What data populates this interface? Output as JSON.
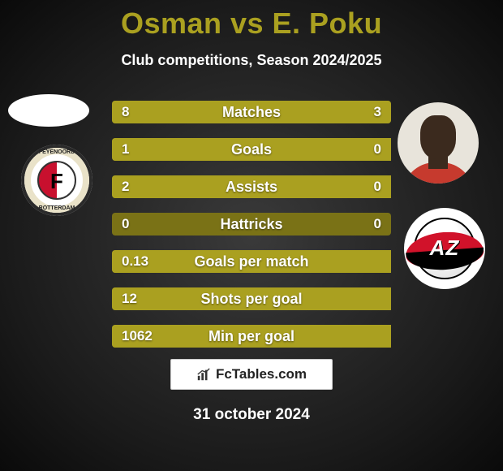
{
  "title": "Osman vs E. Poku",
  "subtitle": "Club competitions, Season 2024/2025",
  "bar_color_fill": "#aaa020",
  "bar_color_base": "#7a7216",
  "rows": [
    {
      "label": "Matches",
      "left": "8",
      "right": "3",
      "fill_left_pct": 72,
      "fill_right_pct": 28
    },
    {
      "label": "Goals",
      "left": "1",
      "right": "0",
      "fill_left_pct": 100,
      "fill_right_pct": 0
    },
    {
      "label": "Assists",
      "left": "2",
      "right": "0",
      "fill_left_pct": 100,
      "fill_right_pct": 0
    },
    {
      "label": "Hattricks",
      "left": "0",
      "right": "0",
      "fill_left_pct": 0,
      "fill_right_pct": 0
    },
    {
      "label": "Goals per match",
      "left": "0.13",
      "right": "",
      "fill_left_pct": 100,
      "fill_right_pct": 0
    },
    {
      "label": "Shots per goal",
      "left": "12",
      "right": "",
      "fill_left_pct": 100,
      "fill_right_pct": 0
    },
    {
      "label": "Min per goal",
      "left": "1062",
      "right": "",
      "fill_left_pct": 100,
      "fill_right_pct": 0
    }
  ],
  "left_badge": {
    "top_text": "FEYENOORD",
    "bottom_text": "ROTTERDAM",
    "letter": "F"
  },
  "right_badge": {
    "text": "AZ"
  },
  "footer": {
    "site": "FcTables.com"
  },
  "date": "31 october 2024"
}
